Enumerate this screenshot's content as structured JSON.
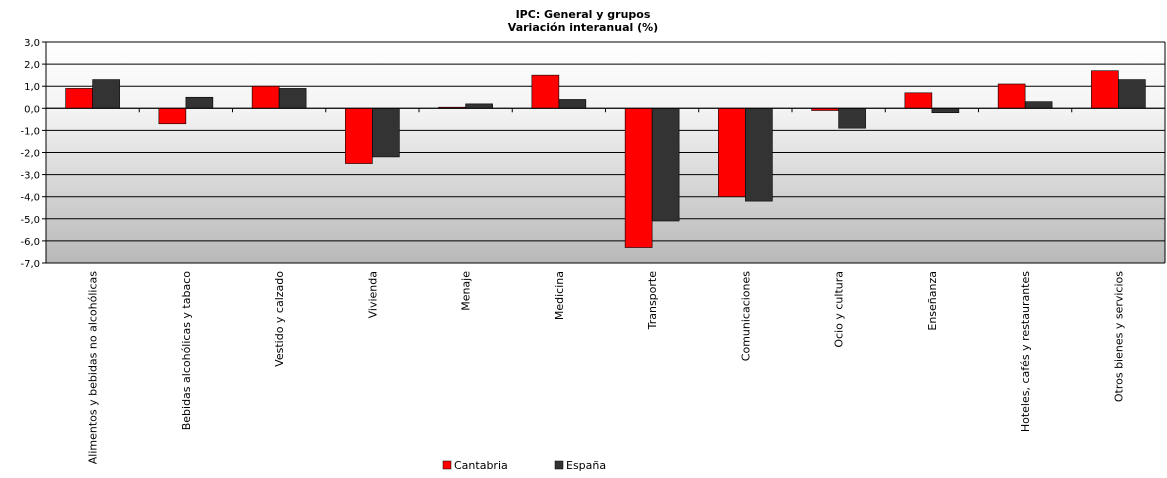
{
  "chart_data": {
    "type": "bar",
    "title": "IPC: General  y grupos",
    "subtitle": "Variación  interanual  (%)",
    "xlabel": "",
    "ylabel": "",
    "ylim": [
      -7.0,
      3.0
    ],
    "ytick_step": 1.0,
    "ytick_labels": [
      "3,0",
      "2,0",
      "1,0",
      "0,0",
      "-1,0",
      "-2,0",
      "-3,0",
      "-4,0",
      "-5,0",
      "-6,0",
      "-7,0"
    ],
    "categories": [
      "Alimentos y bebidas no alcohólicas",
      "Bebidas alcohólicas y tabaco",
      "Vestido y calzado",
      "Vivienda",
      "Menaje",
      "Medicina",
      "Transporte",
      "Comunicaciones",
      "Ocio y cultura",
      "Enseñanza",
      "Hoteles, cafés y restaurantes",
      "Otros bienes y servicios"
    ],
    "series": [
      {
        "name": "Cantabria",
        "color": "#ff0000",
        "values": [
          0.9,
          -0.7,
          1.0,
          -2.5,
          0.05,
          1.5,
          -6.3,
          -4.0,
          -0.1,
          0.7,
          1.1,
          1.7
        ]
      },
      {
        "name": "España",
        "color": "#333333",
        "values": [
          1.3,
          0.5,
          0.9,
          -2.2,
          0.2,
          0.4,
          -5.1,
          -4.2,
          -0.9,
          -0.2,
          0.3,
          1.3
        ]
      }
    ],
    "grid": true,
    "legend_position": "bottom-center"
  }
}
